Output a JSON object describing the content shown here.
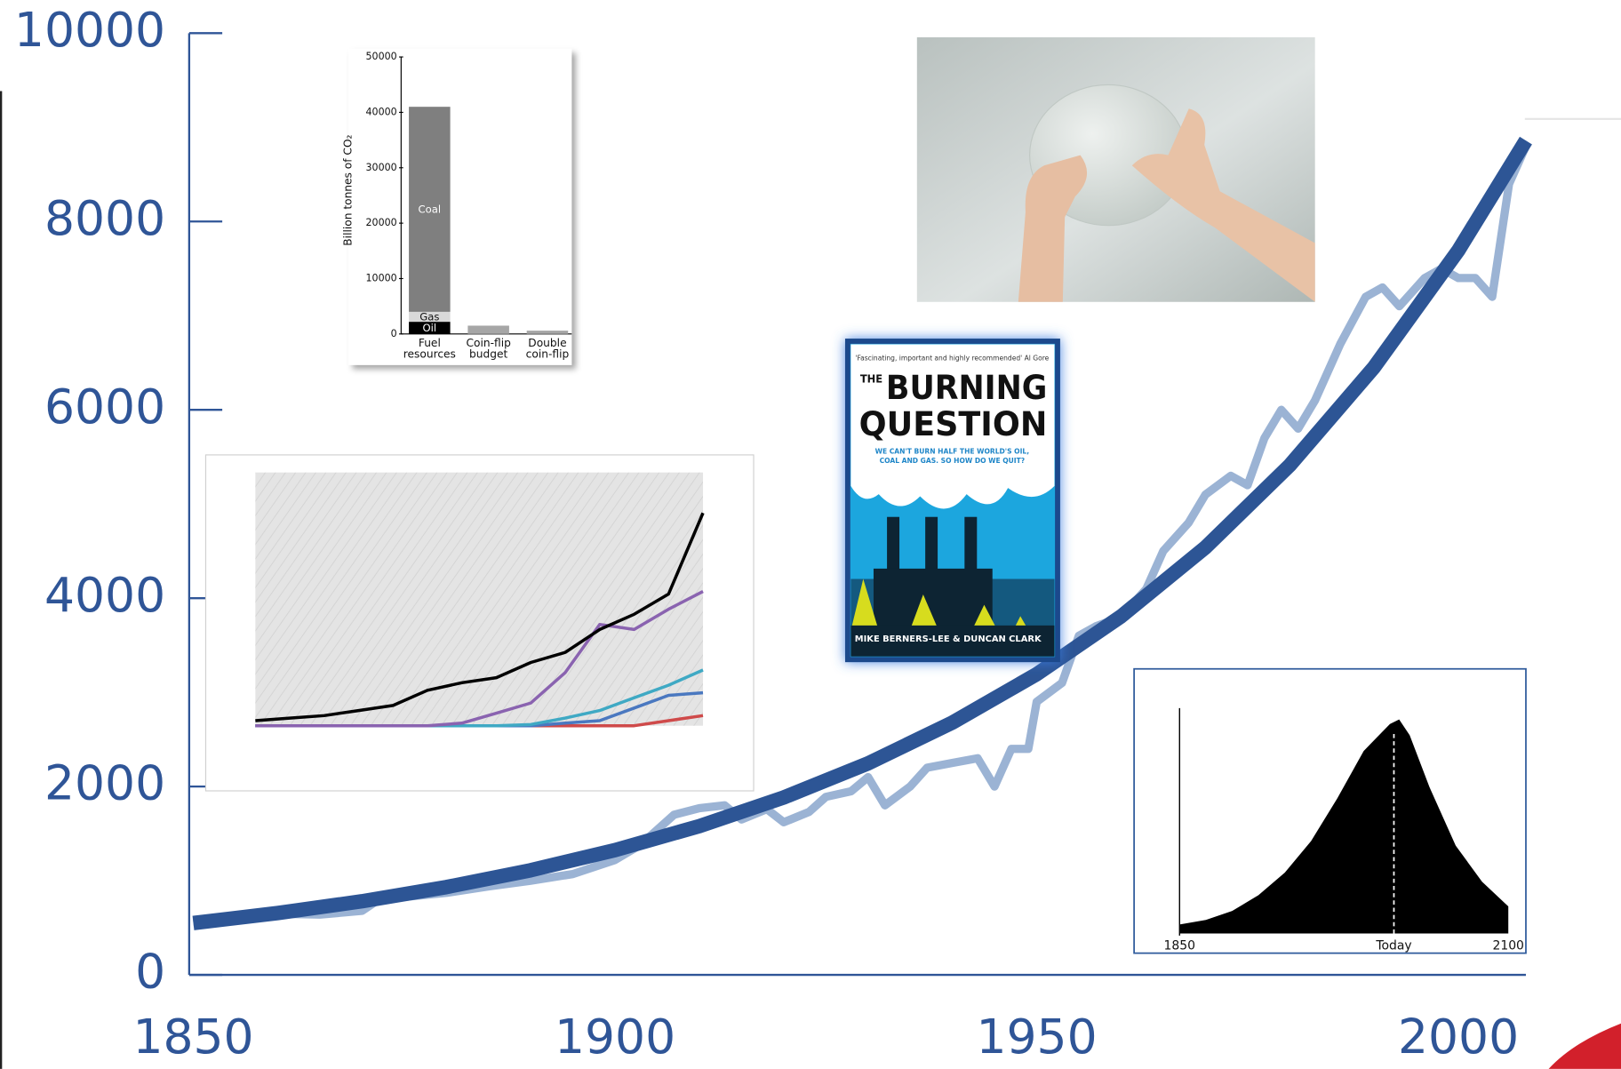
{
  "chart_data": [
    {
      "type": "line",
      "xlim": [
        1850,
        2008
      ],
      "ylim": [
        0,
        10000
      ],
      "xticks": [
        1850,
        1900,
        1950,
        2000
      ],
      "yticks": [
        0,
        2000,
        4000,
        6000,
        8000,
        10000
      ],
      "series": [
        {
          "color": "#2d5595",
          "x": [
            1850,
            1860,
            1870,
            1880,
            1890,
            1900,
            1910,
            1920,
            1930,
            1940,
            1950,
            1960,
            1970,
            1980,
            1990,
            2000,
            2008
          ],
          "values": [
            550,
            656,
            782,
            932,
            1111,
            1325,
            1580,
            1884,
            2246,
            2678,
            3193,
            3807,
            4539,
            5412,
            6453,
            7694,
            8860
          ]
        },
        {
          "color": "#9bb3d4",
          "x": [
            1850,
            1855,
            1860,
            1865,
            1870,
            1872,
            1880,
            1885,
            1890,
            1895,
            1900,
            1903,
            1907,
            1910,
            1913,
            1915,
            1918,
            1920,
            1923,
            1925,
            1928,
            1930,
            1932,
            1935,
            1937,
            1940,
            1943,
            1945,
            1947,
            1949,
            1950,
            1953,
            1955,
            1957,
            1960,
            1963,
            1965,
            1968,
            1970,
            1973,
            1975,
            1977,
            1979,
            1981,
            1983,
            1986,
            1989,
            1991,
            1993,
            1996,
            1998,
            2000,
            2002,
            2004,
            2006,
            2008
          ],
          "values": [
            550,
            600,
            650,
            640,
            680,
            800,
            870,
            940,
            1000,
            1070,
            1220,
            1380,
            1700,
            1770,
            1800,
            1650,
            1760,
            1620,
            1730,
            1890,
            1950,
            2100,
            1800,
            2000,
            2200,
            2250,
            2300,
            2000,
            2400,
            2400,
            2900,
            3100,
            3600,
            3700,
            3800,
            4100,
            4500,
            4800,
            5100,
            5300,
            5200,
            5700,
            6000,
            5800,
            6100,
            6700,
            7200,
            7300,
            7100,
            7400,
            7500,
            7400,
            7400,
            7200,
            8400,
            8800
          ]
        }
      ]
    },
    {
      "type": "bar",
      "stacked": true,
      "ylabel": "Billion tonnes of CO₂",
      "categories": [
        "Fuel resources",
        "Coin-flip budget",
        "Double coin-flip"
      ],
      "ylim": [
        0,
        50000
      ],
      "yticks": [
        0,
        10000,
        20000,
        30000,
        40000,
        50000
      ],
      "series": [
        {
          "name": "Oil",
          "color": "#000000",
          "values": [
            2200,
            null,
            null
          ]
        },
        {
          "name": "Gas",
          "color": "#d9d9d9",
          "values": [
            1800,
            null,
            null
          ]
        },
        {
          "name": "Coal",
          "color": "#7f7f7f",
          "values": [
            37000,
            null,
            null
          ]
        },
        {
          "color": "#a6a6a6",
          "values": [
            null,
            1500,
            600
          ]
        }
      ]
    },
    {
      "type": "line",
      "categories": [
        null,
        null,
        null,
        null,
        null,
        null,
        null,
        null,
        null,
        null,
        null,
        null,
        null,
        null
      ],
      "ylim": [
        0,
        100
      ],
      "series": [
        {
          "color": "#000000",
          "values": [
            2,
            3,
            4,
            6,
            8,
            14,
            17,
            19,
            25,
            29,
            38,
            44,
            52,
            84
          ]
        },
        {
          "color": "#8a63b0",
          "values": [
            0,
            0,
            0,
            0,
            0,
            0,
            1,
            5,
            9,
            21,
            40,
            38,
            46,
            53
          ]
        },
        {
          "color": "#3fa9c4",
          "values": [
            0,
            0,
            0,
            0,
            0,
            0,
            0,
            0,
            0.5,
            3,
            6,
            11,
            16,
            22
          ]
        },
        {
          "color": "#4a78c0",
          "values": [
            0,
            0,
            0,
            0,
            0,
            0,
            0,
            0,
            0,
            1,
            2,
            7,
            12,
            13
          ]
        },
        {
          "color": "#cf4a4a",
          "values": [
            0,
            0,
            0,
            0,
            0,
            0,
            0,
            0,
            0,
            0,
            0,
            0,
            2,
            4
          ]
        }
      ]
    },
    {
      "type": "area",
      "color": "#000000",
      "xlim": [
        1850,
        2100
      ],
      "ylim": [
        0,
        100
      ],
      "xticks": [
        1850,
        {
          "value": 2013,
          "label": "Today"
        },
        2100
      ],
      "x": [
        1850,
        1870,
        1890,
        1910,
        1930,
        1950,
        1970,
        1990,
        2000,
        2010,
        2017,
        2025,
        2040,
        2060,
        2080,
        2100
      ],
      "values": [
        4,
        6,
        10,
        17,
        27,
        41,
        60,
        81,
        87,
        93,
        95,
        88,
        65,
        39,
        23,
        12
      ]
    }
  ],
  "book": {
    "quote": "'Fascinating, important and highly recommended' Al Gore",
    "title_lines": [
      "THE",
      "BURNING",
      "QUESTION"
    ],
    "subtitle_lines": [
      "WE CAN'T BURN HALF THE WORLD'S OIL,",
      "COAL AND GAS. SO HOW DO WE QUIT?"
    ],
    "authors": "MIKE BERNERS-LEE & DUNCAN CLARK"
  }
}
